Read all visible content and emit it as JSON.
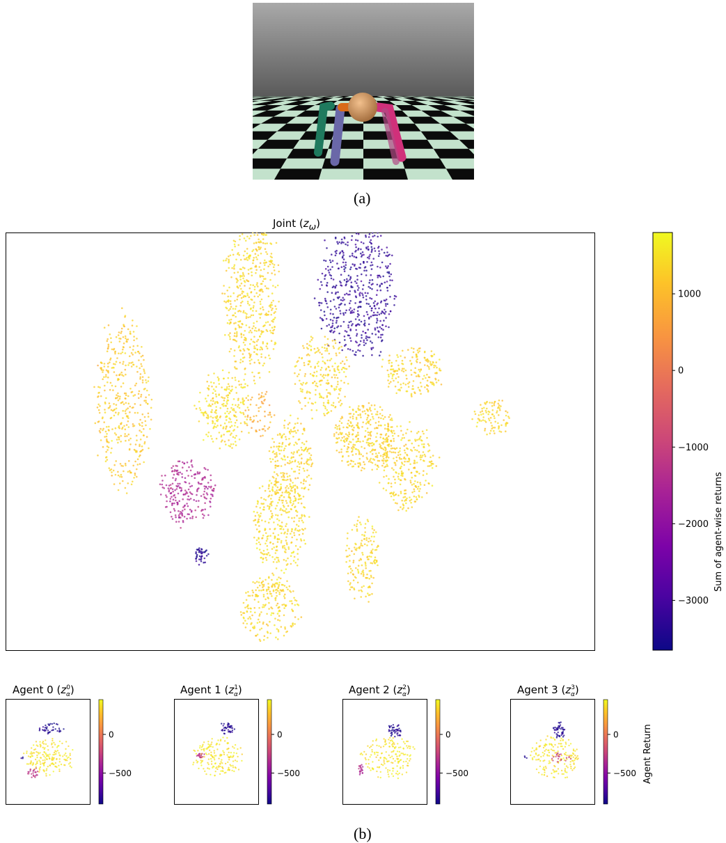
{
  "panel_a": {
    "caption": "(a)"
  },
  "panel_b": {
    "caption": "(b)"
  },
  "chart_data": [
    {
      "type": "scatter",
      "title": "Joint (z_ω)",
      "title_parts": {
        "prefix": "Joint (",
        "var": "z",
        "sub": "ω",
        "suffix": ")"
      },
      "xlabel": "",
      "ylabel": "",
      "grid": false,
      "colorbar": {
        "label": "Sum of agent-wise returns",
        "range": [
          -3650,
          1800
        ],
        "ticks": [
          1000,
          0,
          -1000,
          -2000,
          -3000
        ],
        "tick_labels": [
          "1000",
          "0",
          "−1000",
          "−2000",
          "−3000"
        ],
        "colormap": "plasma"
      },
      "clusters": [
        {
          "cx": 0.418,
          "cy": 0.845,
          "rx": 0.045,
          "ry": 0.2,
          "value": 1350,
          "n": 520
        },
        {
          "cx": 0.595,
          "cy": 0.86,
          "rx": 0.065,
          "ry": 0.155,
          "value": -3300,
          "n": 520
        },
        {
          "cx": 0.2,
          "cy": 0.59,
          "rx": 0.045,
          "ry": 0.2,
          "value": 1200,
          "n": 420
        },
        {
          "cx": 0.536,
          "cy": 0.66,
          "rx": 0.045,
          "ry": 0.095,
          "value": 1350,
          "n": 230
        },
        {
          "cx": 0.69,
          "cy": 0.665,
          "rx": 0.05,
          "ry": 0.06,
          "value": 1300,
          "n": 180
        },
        {
          "cx": 0.825,
          "cy": 0.56,
          "rx": 0.03,
          "ry": 0.045,
          "value": 1350,
          "n": 90
        },
        {
          "cx": 0.37,
          "cy": 0.575,
          "rx": 0.045,
          "ry": 0.09,
          "value": 1450,
          "n": 240
        },
        {
          "cx": 0.43,
          "cy": 0.565,
          "rx": 0.025,
          "ry": 0.055,
          "value": 800,
          "n": 60
        },
        {
          "cx": 0.485,
          "cy": 0.45,
          "rx": 0.035,
          "ry": 0.1,
          "value": 1300,
          "n": 230
        },
        {
          "cx": 0.61,
          "cy": 0.51,
          "rx": 0.055,
          "ry": 0.08,
          "value": 1300,
          "n": 330
        },
        {
          "cx": 0.68,
          "cy": 0.44,
          "rx": 0.045,
          "ry": 0.1,
          "value": 1350,
          "n": 280
        },
        {
          "cx": 0.465,
          "cy": 0.3,
          "rx": 0.045,
          "ry": 0.11,
          "value": 1400,
          "n": 320
        },
        {
          "cx": 0.31,
          "cy": 0.38,
          "rx": 0.045,
          "ry": 0.075,
          "value": -1500,
          "n": 230
        },
        {
          "cx": 0.332,
          "cy": 0.225,
          "rx": 0.012,
          "ry": 0.02,
          "value": -3400,
          "n": 40
        },
        {
          "cx": 0.605,
          "cy": 0.22,
          "rx": 0.028,
          "ry": 0.1,
          "value": 1350,
          "n": 160
        },
        {
          "cx": 0.45,
          "cy": 0.1,
          "rx": 0.05,
          "ry": 0.08,
          "value": 1350,
          "n": 230
        }
      ]
    },
    {
      "type": "scatter",
      "title_parts": {
        "prefix": "Agent 0 (",
        "var": "z",
        "sub": "α",
        "sup": "0",
        "suffix": ")"
      },
      "colorbar": {
        "range": [
          -900,
          450
        ],
        "ticks": [
          0,
          -500
        ],
        "tick_labels": [
          "0",
          "−500"
        ],
        "colormap": "plasma"
      },
      "clusters": [
        {
          "cx": 0.55,
          "cy": 0.72,
          "rx": 0.15,
          "ry": 0.05,
          "value": -850,
          "n": 40
        },
        {
          "cx": 0.5,
          "cy": 0.45,
          "rx": 0.28,
          "ry": 0.16,
          "value": 380,
          "n": 170
        },
        {
          "cx": 0.32,
          "cy": 0.3,
          "rx": 0.06,
          "ry": 0.05,
          "value": -300,
          "n": 25
        },
        {
          "cx": 0.2,
          "cy": 0.43,
          "rx": 0.02,
          "ry": 0.02,
          "value": -850,
          "n": 3
        }
      ]
    },
    {
      "type": "scatter",
      "title_parts": {
        "prefix": "Agent 1 (",
        "var": "z",
        "sub": "α",
        "sup": "1",
        "suffix": ")"
      },
      "colorbar": {
        "range": [
          -900,
          450
        ],
        "ticks": [
          0,
          -500
        ],
        "tick_labels": [
          "0",
          "−500"
        ],
        "colormap": "plasma"
      },
      "clusters": [
        {
          "cx": 0.62,
          "cy": 0.72,
          "rx": 0.08,
          "ry": 0.05,
          "value": -850,
          "n": 40
        },
        {
          "cx": 0.52,
          "cy": 0.45,
          "rx": 0.28,
          "ry": 0.18,
          "value": 380,
          "n": 170
        },
        {
          "cx": 0.32,
          "cy": 0.46,
          "rx": 0.05,
          "ry": 0.03,
          "value": -300,
          "n": 18
        }
      ]
    },
    {
      "type": "scatter",
      "title_parts": {
        "prefix": "Agent 2 (",
        "var": "z",
        "sub": "α",
        "sup": "2",
        "suffix": ")"
      },
      "colorbar": {
        "range": [
          -900,
          450
        ],
        "ticks": [
          0,
          -500
        ],
        "tick_labels": [
          "0",
          "−500"
        ],
        "colormap": "plasma"
      },
      "clusters": [
        {
          "cx": 0.62,
          "cy": 0.7,
          "rx": 0.08,
          "ry": 0.07,
          "value": -850,
          "n": 45
        },
        {
          "cx": 0.55,
          "cy": 0.45,
          "rx": 0.3,
          "ry": 0.2,
          "value": 380,
          "n": 170
        },
        {
          "cx": 0.22,
          "cy": 0.34,
          "rx": 0.035,
          "ry": 0.06,
          "value": -350,
          "n": 20
        }
      ]
    },
    {
      "type": "scatter",
      "title_parts": {
        "prefix": "Agent 3 (",
        "var": "z",
        "sub": "α",
        "sup": "3",
        "suffix": ")"
      },
      "colorbar": {
        "label": "Agent Return",
        "range": [
          -900,
          450
        ],
        "ticks": [
          0,
          -500
        ],
        "tick_labels": [
          "0",
          "−500"
        ],
        "colormap": "plasma"
      },
      "clusters": [
        {
          "cx": 0.58,
          "cy": 0.7,
          "rx": 0.07,
          "ry": 0.08,
          "value": -850,
          "n": 45
        },
        {
          "cx": 0.52,
          "cy": 0.45,
          "rx": 0.28,
          "ry": 0.2,
          "value": 380,
          "n": 170
        },
        {
          "cx": 0.6,
          "cy": 0.45,
          "rx": 0.12,
          "ry": 0.05,
          "value": -250,
          "n": 22
        },
        {
          "cx": 0.18,
          "cy": 0.45,
          "rx": 0.015,
          "ry": 0.03,
          "value": -850,
          "n": 3
        }
      ]
    }
  ]
}
